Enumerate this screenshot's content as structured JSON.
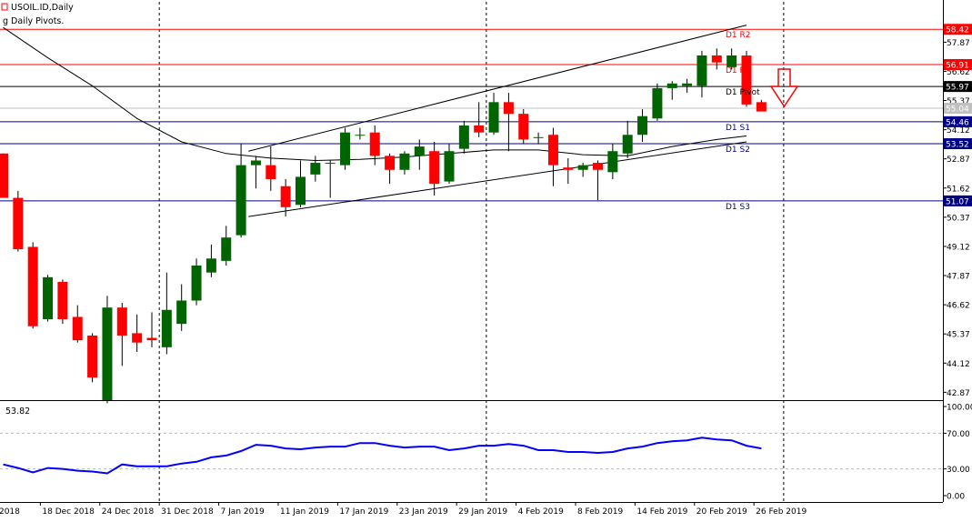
{
  "header": {
    "symbol_text": "USOIL.ID,Daily",
    "indicator_text": "g Daily Pivots."
  },
  "sub_header": {
    "text": "53.82"
  },
  "colors": {
    "bull": "#006400",
    "bear": "#ff0000",
    "wick": "#000000",
    "pivot_red": "#ff0000",
    "pivot_navy": "#00008b",
    "pivot_black": "#000000",
    "rsi": "#0000ff",
    "arrow": "#ff0000",
    "price_gray": "#c0c0c0"
  },
  "chart_data": [
    {
      "type": "candlestick",
      "ylim": [
        42.2,
        58.8
      ],
      "price_ticks": [
        "57.87",
        "56.62",
        "55.37",
        "54.12",
        "52.87",
        "51.62",
        "50.37",
        "49.12",
        "47.87",
        "46.62",
        "45.37",
        "44.12",
        "42.87"
      ],
      "dates": [
        "18 Dec 2018",
        "24 Dec 2018",
        "31 Dec 2018",
        "7 Jan 2019",
        "11 Jan 2019",
        "17 Jan 2019",
        "23 Jan 2019",
        "29 Jan 2019",
        "4 Feb 2019",
        "8 Feb 2019",
        "14 Feb 2019",
        "20 Feb 2019",
        "26 Feb 2019"
      ],
      "x_labels": [
        {
          "text": "2018",
          "bar": -0.4
        },
        {
          "text": "18 Dec 2018",
          "bar": 2.5
        },
        {
          "text": "24 Dec 2018",
          "bar": 6.5
        },
        {
          "text": "31 Dec 2018",
          "bar": 10.5
        },
        {
          "text": "7 Jan 2019",
          "bar": 14.5
        },
        {
          "text": "11 Jan 2019",
          "bar": 18.5
        },
        {
          "text": "17 Jan 2019",
          "bar": 22.5
        },
        {
          "text": "23 Jan 2019",
          "bar": 26.5
        },
        {
          "text": "29 Jan 2019",
          "bar": 30.5
        },
        {
          "text": "4 Feb 2019",
          "bar": 34.5
        },
        {
          "text": "8 Feb 2019",
          "bar": 38.5
        },
        {
          "text": "14 Feb 2019",
          "bar": 42.5
        },
        {
          "text": "20 Feb 2019",
          "bar": 46.5
        },
        {
          "text": "26 Feb 2019",
          "bar": 50.5
        }
      ],
      "vgrid_bars": [
        10.5,
        32.5,
        52.5
      ],
      "candles": [
        {
          "o": 53.1,
          "h": 53.1,
          "l": 51.2,
          "c": 51.2
        },
        {
          "o": 51.2,
          "h": 51.5,
          "l": 48.9,
          "c": 49.0
        },
        {
          "o": 49.1,
          "h": 49.3,
          "l": 45.6,
          "c": 45.7
        },
        {
          "o": 46.0,
          "h": 47.9,
          "l": 45.9,
          "c": 47.8
        },
        {
          "o": 47.6,
          "h": 47.7,
          "l": 45.8,
          "c": 46.0
        },
        {
          "o": 46.1,
          "h": 46.6,
          "l": 45.0,
          "c": 45.1
        },
        {
          "o": 45.3,
          "h": 45.4,
          "l": 43.3,
          "c": 43.5
        },
        {
          "o": 42.5,
          "h": 47.0,
          "l": 42.4,
          "c": 46.5
        },
        {
          "o": 46.5,
          "h": 46.7,
          "l": 44.0,
          "c": 45.3
        },
        {
          "o": 45.4,
          "h": 46.2,
          "l": 44.6,
          "c": 45.0
        },
        {
          "o": 45.2,
          "h": 46.3,
          "l": 44.8,
          "c": 45.1
        },
        {
          "o": 44.8,
          "h": 48.0,
          "l": 44.5,
          "c": 46.4
        },
        {
          "o": 45.8,
          "h": 47.5,
          "l": 45.5,
          "c": 46.8
        },
        {
          "o": 46.8,
          "h": 48.6,
          "l": 46.6,
          "c": 48.3
        },
        {
          "o": 48.0,
          "h": 49.2,
          "l": 47.8,
          "c": 48.6
        },
        {
          "o": 48.5,
          "h": 50.0,
          "l": 48.3,
          "c": 49.5
        },
        {
          "o": 49.6,
          "h": 53.5,
          "l": 49.5,
          "c": 52.6
        },
        {
          "o": 52.6,
          "h": 53.0,
          "l": 51.6,
          "c": 52.8
        },
        {
          "o": 52.6,
          "h": 53.4,
          "l": 51.5,
          "c": 52.0
        },
        {
          "o": 51.7,
          "h": 52.0,
          "l": 50.4,
          "c": 50.8
        },
        {
          "o": 50.9,
          "h": 52.8,
          "l": 50.8,
          "c": 52.1
        },
        {
          "o": 52.2,
          "h": 53.0,
          "l": 51.9,
          "c": 52.7
        },
        {
          "o": 52.7,
          "h": 52.8,
          "l": 51.2,
          "c": 52.7
        },
        {
          "o": 52.6,
          "h": 54.2,
          "l": 52.4,
          "c": 54.0
        },
        {
          "o": 53.9,
          "h": 54.2,
          "l": 53.7,
          "c": 53.9
        },
        {
          "o": 54.0,
          "h": 54.3,
          "l": 52.6,
          "c": 53.0
        },
        {
          "o": 53.0,
          "h": 53.1,
          "l": 51.8,
          "c": 52.4
        },
        {
          "o": 52.4,
          "h": 53.2,
          "l": 52.2,
          "c": 53.1
        },
        {
          "o": 53.0,
          "h": 53.7,
          "l": 52.4,
          "c": 53.4
        },
        {
          "o": 53.2,
          "h": 53.6,
          "l": 51.3,
          "c": 51.8
        },
        {
          "o": 51.9,
          "h": 53.5,
          "l": 51.8,
          "c": 53.2
        },
        {
          "o": 53.3,
          "h": 54.5,
          "l": 53.1,
          "c": 54.3
        },
        {
          "o": 54.3,
          "h": 55.3,
          "l": 53.8,
          "c": 54.0
        },
        {
          "o": 54.0,
          "h": 55.7,
          "l": 53.9,
          "c": 55.3
        },
        {
          "o": 55.3,
          "h": 55.7,
          "l": 53.2,
          "c": 54.8
        },
        {
          "o": 54.8,
          "h": 55.0,
          "l": 53.5,
          "c": 53.7
        },
        {
          "o": 53.8,
          "h": 54.0,
          "l": 53.5,
          "c": 53.8
        },
        {
          "o": 53.9,
          "h": 54.2,
          "l": 51.7,
          "c": 52.6
        },
        {
          "o": 52.5,
          "h": 52.9,
          "l": 51.8,
          "c": 52.4
        },
        {
          "o": 52.4,
          "h": 52.7,
          "l": 52.1,
          "c": 52.6
        },
        {
          "o": 52.7,
          "h": 52.8,
          "l": 51.1,
          "c": 52.4
        },
        {
          "o": 52.3,
          "h": 53.5,
          "l": 52.0,
          "c": 53.2
        },
        {
          "o": 53.1,
          "h": 54.5,
          "l": 52.9,
          "c": 53.9
        },
        {
          "o": 53.9,
          "h": 55.0,
          "l": 53.6,
          "c": 54.7
        },
        {
          "o": 54.6,
          "h": 56.1,
          "l": 54.5,
          "c": 55.9
        },
        {
          "o": 55.9,
          "h": 56.2,
          "l": 55.4,
          "c": 56.1
        },
        {
          "o": 56.0,
          "h": 56.3,
          "l": 55.7,
          "c": 56.1
        },
        {
          "o": 56.0,
          "h": 57.5,
          "l": 55.5,
          "c": 57.3
        },
        {
          "o": 57.3,
          "h": 57.6,
          "l": 56.7,
          "c": 57.0
        },
        {
          "o": 56.8,
          "h": 57.6,
          "l": 56.7,
          "c": 57.3
        },
        {
          "o": 57.3,
          "h": 57.5,
          "l": 55.1,
          "c": 55.2
        },
        {
          "o": 55.3,
          "h": 55.4,
          "l": 54.9,
          "c": 54.9
        }
      ],
      "moving_average": [
        {
          "bar": 0,
          "v": 58.5
        },
        {
          "bar": 3,
          "v": 57.2
        },
        {
          "bar": 6,
          "v": 56.0
        },
        {
          "bar": 9,
          "v": 54.6
        },
        {
          "bar": 12,
          "v": 53.6
        },
        {
          "bar": 15,
          "v": 53.1
        },
        {
          "bar": 18,
          "v": 52.9
        },
        {
          "bar": 21,
          "v": 52.8
        },
        {
          "bar": 24,
          "v": 52.85
        },
        {
          "bar": 27,
          "v": 52.95
        },
        {
          "bar": 30,
          "v": 53.1
        },
        {
          "bar": 33,
          "v": 53.25
        },
        {
          "bar": 36,
          "v": 53.25
        },
        {
          "bar": 39,
          "v": 53.05
        },
        {
          "bar": 42,
          "v": 53.0
        },
        {
          "bar": 45,
          "v": 53.4
        },
        {
          "bar": 48,
          "v": 53.7
        },
        {
          "bar": 50,
          "v": 53.85
        }
      ],
      "trendlines": [
        {
          "bar1": 16.5,
          "v1": 53.2,
          "bar2": 50.0,
          "v2": 58.6
        },
        {
          "bar1": 16.5,
          "v1": 50.4,
          "bar2": 50.0,
          "v2": 53.6
        }
      ],
      "pivots": [
        {
          "name": "D1 R2",
          "label": "58.42",
          "v": 58.42,
          "color": "pivot_red"
        },
        {
          "name": "D1 R1",
          "label": "56.91",
          "v": 56.91,
          "color": "pivot_red"
        },
        {
          "name": "D1 Pivot",
          "label": "55.97",
          "v": 55.97,
          "color": "pivot_black"
        },
        {
          "name": "D1 S1",
          "label": "54.46",
          "v": 54.46,
          "color": "pivot_navy"
        },
        {
          "name": "D1 S2",
          "label": "53.52",
          "v": 53.52,
          "color": "pivot_navy"
        },
        {
          "name": "D1 S3",
          "label": "51.07",
          "v": 51.07,
          "color": "pivot_navy"
        }
      ],
      "current_price": {
        "label": "55.04",
        "v": 55.04
      }
    },
    {
      "type": "line",
      "name": "RSI",
      "ylim": [
        0,
        100
      ],
      "ticks": [
        "100.00",
        "70.00",
        "30.00",
        "0.00"
      ],
      "levels": [
        70,
        30
      ],
      "values": [
        35,
        31,
        26,
        31,
        30,
        28,
        27,
        25,
        35,
        33,
        33,
        33,
        36,
        38,
        43,
        45,
        50,
        57,
        56,
        53,
        52,
        54,
        55,
        55,
        59,
        59,
        56,
        54,
        55,
        55,
        51,
        53,
        56,
        56,
        58,
        56,
        51,
        51,
        49,
        49,
        48,
        49,
        53,
        55,
        59,
        61,
        62,
        65,
        63,
        62,
        56,
        53
      ]
    }
  ]
}
